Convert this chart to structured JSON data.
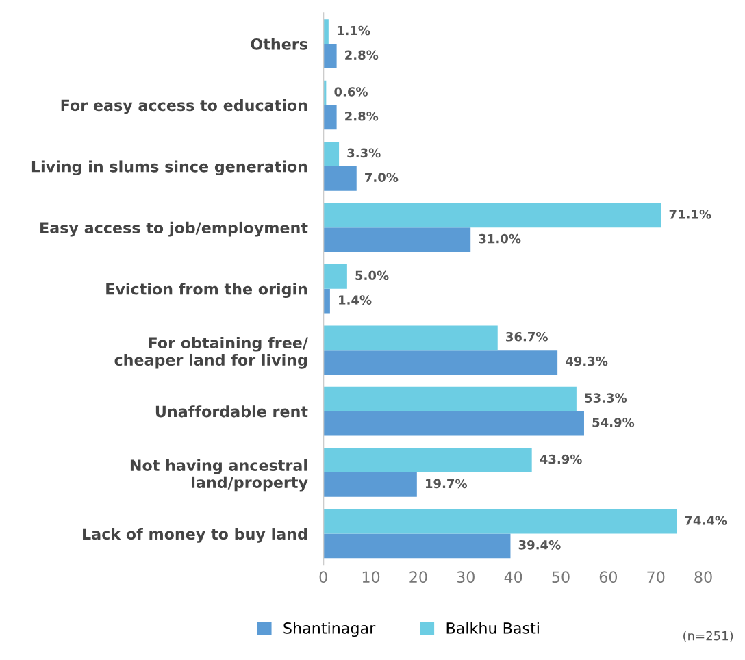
{
  "chart_data": {
    "type": "bar",
    "orientation": "horizontal",
    "categories": [
      "Others",
      "For easy access to education",
      "Living in slums since generation",
      "Easy access to job/employment",
      "Eviction from the origin",
      "For obtaining free/\ncheaper land for living",
      "Unaffordable rent",
      "Not having ancestral\nland/property",
      "Lack of money to buy land"
    ],
    "series": [
      {
        "name": "Shantinagar",
        "color": "#5b9bd5",
        "values": [
          2.8,
          2.8,
          7.0,
          31.0,
          1.4,
          49.3,
          54.9,
          19.7,
          39.4
        ],
        "value_labels": [
          "2.8%",
          "2.8%",
          "7.0%",
          "31.0%",
          "1.4%",
          "49.3%",
          "54.9%",
          "19.7%",
          "39.4%"
        ]
      },
      {
        "name": "Balkhu Basti",
        "color": "#6ccde3",
        "values": [
          1.1,
          0.6,
          3.3,
          71.1,
          5.0,
          36.7,
          53.3,
          43.9,
          74.4
        ],
        "value_labels": [
          "1.1%",
          "0.6%",
          "3.3%",
          "71.1%",
          "5.0%",
          "36.7%",
          "53.3%",
          "43.9%",
          "74.4%"
        ]
      }
    ],
    "xlim": [
      0,
      80
    ],
    "xticks": [
      0,
      10,
      20,
      30,
      40,
      50,
      60,
      70,
      80
    ],
    "grid": false,
    "legend": "bottom",
    "annotations": [
      "(n=251)"
    ]
  }
}
